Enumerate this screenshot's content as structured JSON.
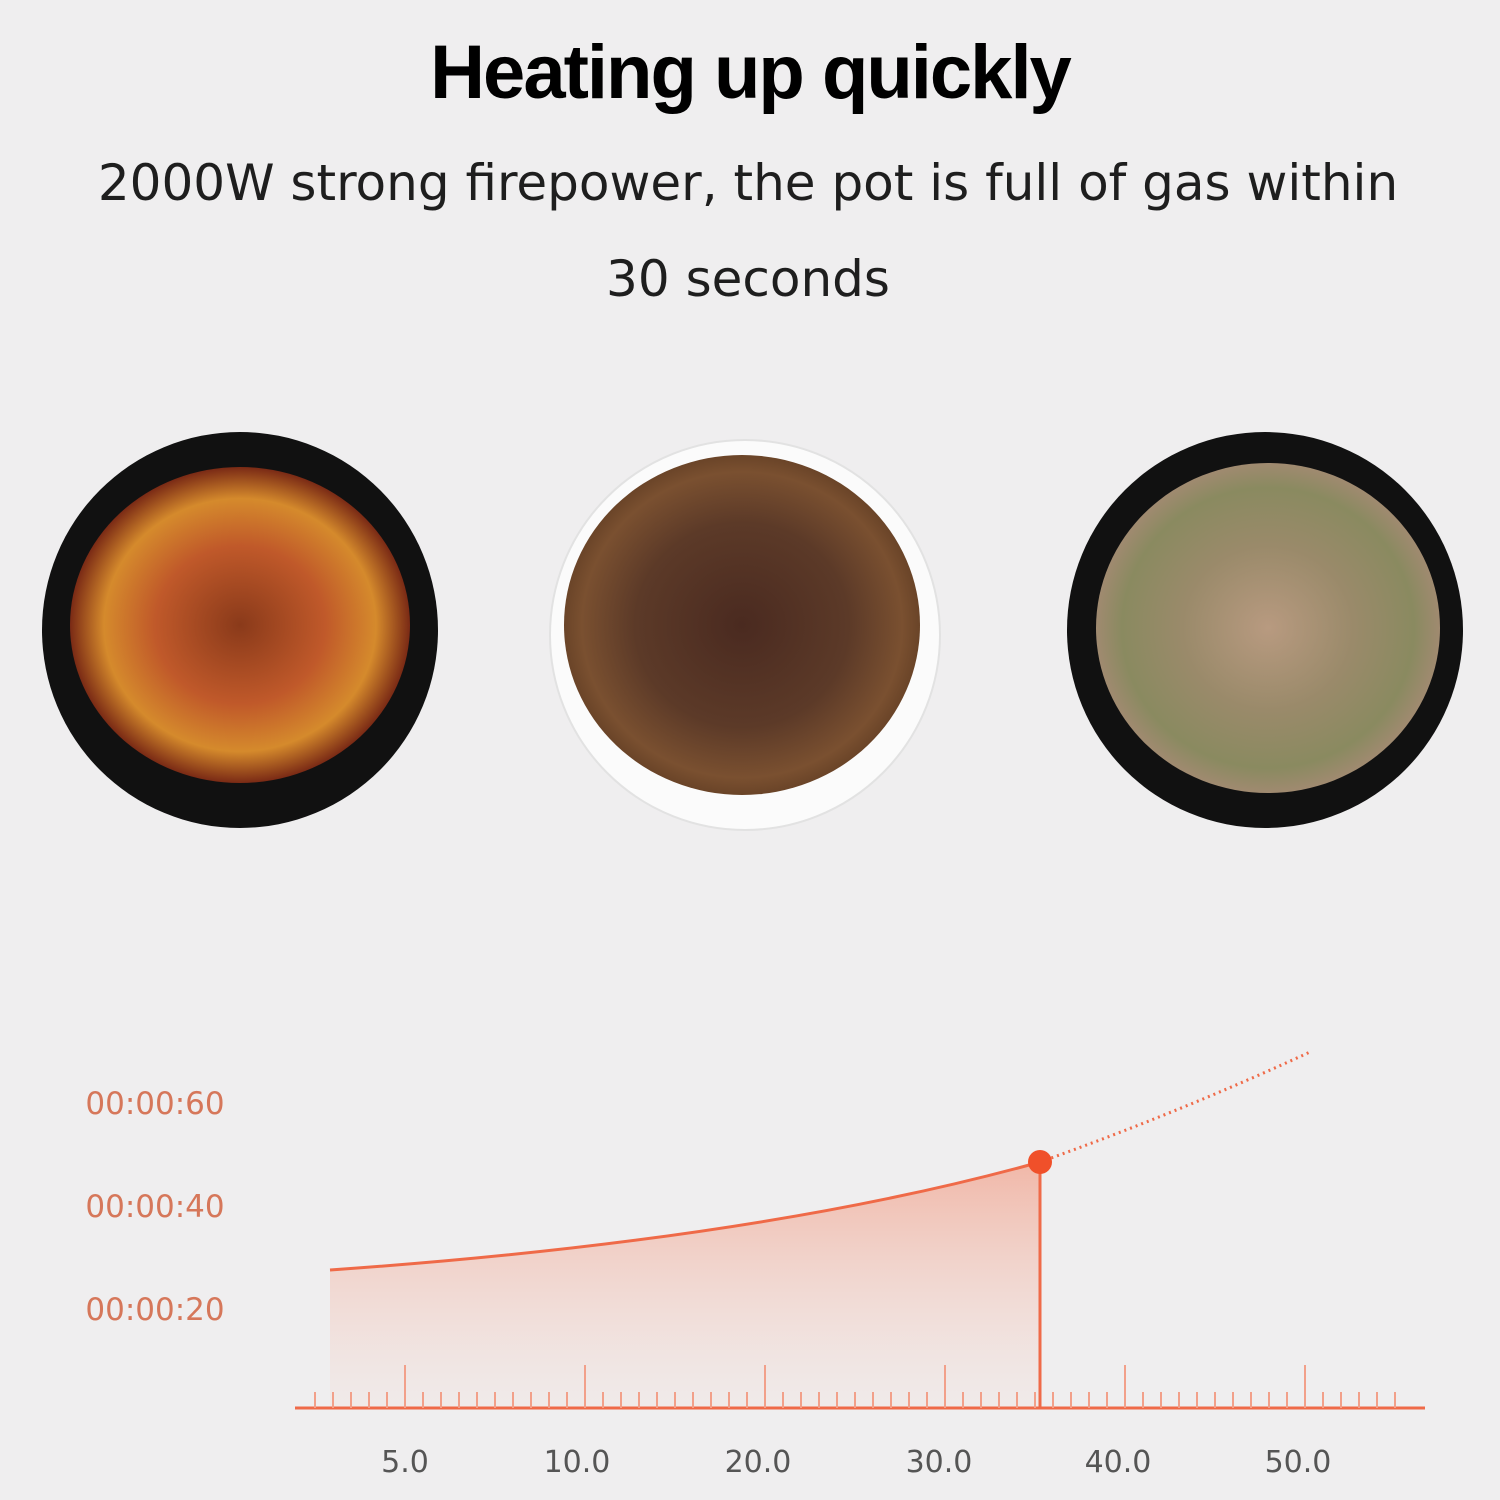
{
  "header": {
    "title": "Heating up quickly",
    "subtitle_lines": [
      "2000W strong firepower, the pot is full of gas within",
      "30 seconds"
    ]
  },
  "graphic": {
    "y_labels": [
      "00:00:60",
      "00:00:40",
      "00:00:20"
    ],
    "x_labels": [
      "5.0",
      "10.0",
      "20.0",
      "30.0",
      "40.0",
      "50.0"
    ]
  }
}
